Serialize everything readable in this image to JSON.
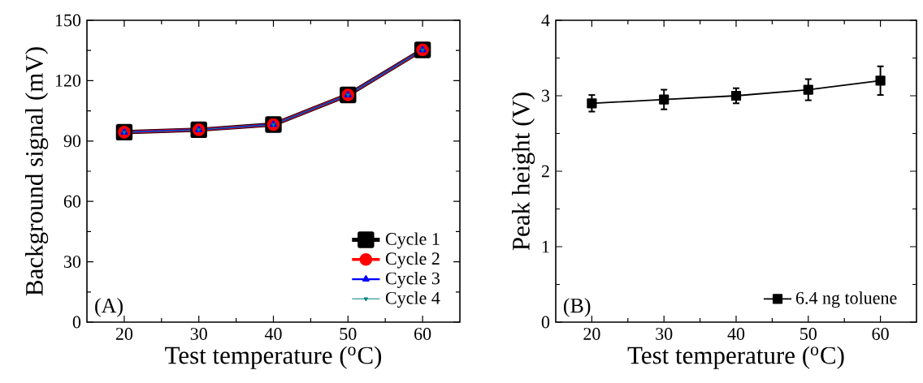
{
  "chart_data": [
    {
      "type": "line",
      "xlabel": "Test temperature ($^{o}$C)",
      "ylabel": "Background signal (mV)",
      "x": [
        20,
        30,
        40,
        50,
        60
      ],
      "xlim": [
        15,
        65
      ],
      "xticks": [
        20,
        30,
        40,
        50,
        60
      ],
      "ylim": [
        0,
        150
      ],
      "yticks": [
        0,
        30,
        60,
        90,
        120,
        150
      ],
      "legend": "bottom right",
      "line_style": "solid",
      "series": [
        {
          "name": "Cycle 1",
          "color": "#000000",
          "marker": "square",
          "values": [
            94.4,
            95.6,
            98.2,
            112.9,
            135.3
          ]
        },
        {
          "name": "Cycle 2",
          "color": "#ff0000",
          "marker": "circle",
          "values": [
            94.4,
            95.6,
            98.2,
            112.9,
            135.3
          ]
        },
        {
          "name": "Cycle 3",
          "color": "#0000ff",
          "marker": "triangle",
          "values": [
            94.4,
            95.6,
            98.2,
            112.9,
            135.3
          ]
        },
        {
          "name": "Cycle 4",
          "color": "#008080",
          "marker": "triangle_down",
          "values": [
            94.4,
            95.6,
            98.2,
            112.9,
            135.3
          ]
        }
      ],
      "annotations": [
        "(A)"
      ]
    },
    {
      "type": "line",
      "xlabel": "Test temperature ($^{o}$C)",
      "ylabel": "Peak height (V)",
      "x": [
        20,
        30,
        40,
        50,
        60
      ],
      "xlim": [
        15,
        65
      ],
      "xticks": [
        20,
        30,
        40,
        50,
        60
      ],
      "ylim": [
        0,
        4
      ],
      "yticks": [
        0,
        1,
        2,
        3,
        4
      ],
      "legend": "bottom right",
      "line_style": "solid",
      "series": [
        {
          "name": "6.4 ng toluene",
          "color": "#000000",
          "marker": "square",
          "values": [
            2.9,
            2.95,
            3.0,
            3.08,
            3.2
          ],
          "errors": [
            0.11,
            0.13,
            0.1,
            0.14,
            0.19
          ]
        }
      ],
      "annotations": [
        "(B)"
      ]
    }
  ]
}
